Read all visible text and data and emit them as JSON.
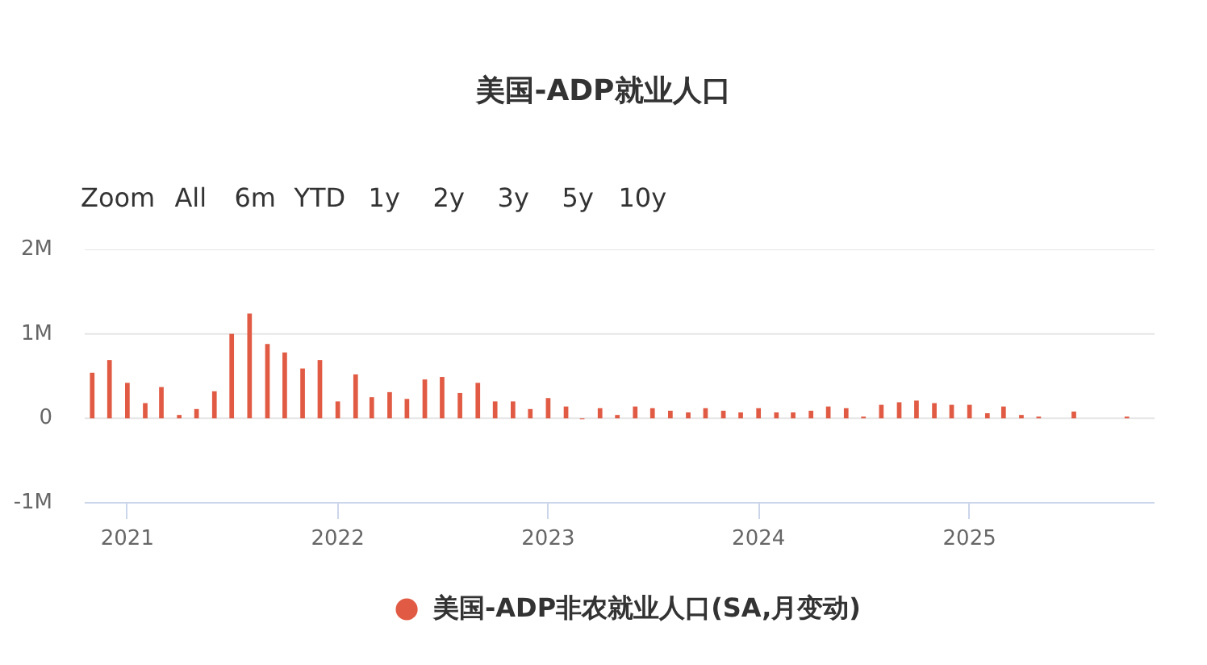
{
  "chart_data": {
    "type": "bar",
    "title": "美国-ADP就业人口",
    "annotations": [
      "Zoom",
      "All",
      "6m",
      "YTD",
      "1y",
      "2y",
      "3y",
      "5y",
      "10y"
    ],
    "x": [
      "2020-11",
      "2020-12",
      "2021-01",
      "2021-02",
      "2021-03",
      "2021-04",
      "2021-05",
      "2021-06",
      "2021-07",
      "2021-08",
      "2021-09",
      "2021-10",
      "2021-11",
      "2021-12",
      "2022-01",
      "2022-02",
      "2022-03",
      "2022-04",
      "2022-05",
      "2022-06",
      "2022-07",
      "2022-08",
      "2022-09",
      "2022-10",
      "2022-11",
      "2022-12",
      "2023-01",
      "2023-02",
      "2023-03",
      "2023-04",
      "2023-05",
      "2023-06",
      "2023-07",
      "2023-08",
      "2023-09",
      "2023-10",
      "2023-11",
      "2023-12",
      "2024-01",
      "2024-02",
      "2024-03",
      "2024-04",
      "2024-05",
      "2024-06",
      "2024-07",
      "2024-08",
      "2024-09",
      "2024-10",
      "2024-11",
      "2024-12",
      "2025-01",
      "2025-02",
      "2025-03",
      "2025-04",
      "2025-05",
      "2025-06",
      "2025-07",
      "2025-08",
      "2025-09",
      "2025-10"
    ],
    "series": [
      {
        "name": "美国-ADP非农就业人口(SA,月变动)",
        "color": "#e15b44",
        "values": [
          540000,
          690000,
          420000,
          180000,
          370000,
          40000,
          110000,
          320000,
          1000000,
          1240000,
          880000,
          780000,
          590000,
          690000,
          200000,
          520000,
          250000,
          310000,
          230000,
          460000,
          490000,
          300000,
          420000,
          200000,
          200000,
          110000,
          240000,
          140000,
          -10000,
          120000,
          40000,
          140000,
          120000,
          90000,
          70000,
          120000,
          90000,
          70000,
          120000,
          70000,
          70000,
          90000,
          140000,
          120000,
          20000,
          160000,
          190000,
          210000,
          180000,
          160000,
          160000,
          60000,
          140000,
          40000,
          20000,
          null,
          80000,
          null,
          null,
          20000
        ]
      }
    ],
    "xlim": [
      "2020-10-19",
      "2025-11-18"
    ],
    "xticks": [
      "2021",
      "2022",
      "2023",
      "2024",
      "2025"
    ],
    "ylim": [
      -1000000,
      2000000
    ],
    "yticks": [
      {
        "value": -1000000,
        "label": "-1M"
      },
      0,
      {
        "value": 1000000,
        "label": "1M"
      },
      {
        "value": 2000000,
        "label": "2M"
      }
    ],
    "grid": "y",
    "legend": "bottom"
  }
}
